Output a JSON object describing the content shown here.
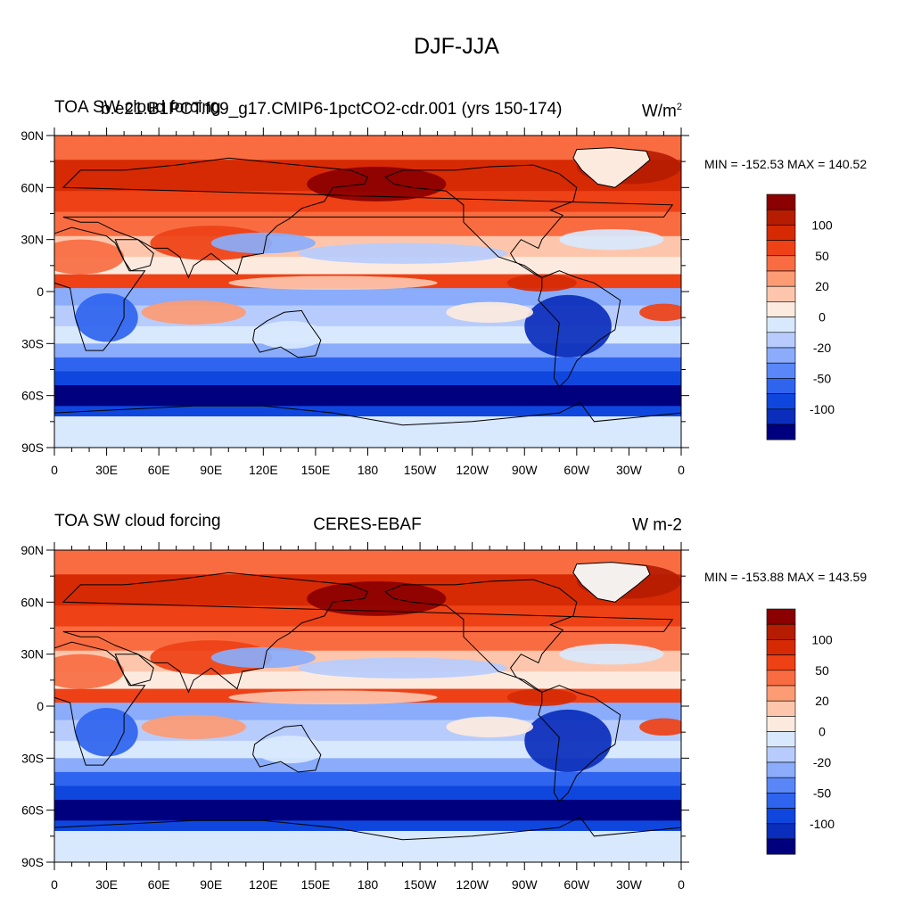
{
  "main_title": "DJF-JJA",
  "colors": [
    "#00007f",
    "#0a2dbb",
    "#0f47de",
    "#2f64ef",
    "#5987f8",
    "#8aacfb",
    "#b7ccfc",
    "#d8e8fd",
    "#fdeadf",
    "#fdc6ac",
    "#fc9b74",
    "#f96c41",
    "#ee4116",
    "#d62a05",
    "#b51c02",
    "#8b0000"
  ],
  "colorbar_labels": [
    "100",
    "50",
    "20",
    "0",
    "-20",
    "-50",
    "-100"
  ],
  "lat_labels": [
    "90N",
    "60N",
    "30N",
    "0",
    "30S",
    "60S",
    "90S"
  ],
  "lon_labels": [
    "0",
    "30E",
    "60E",
    "90E",
    "120E",
    "150E",
    "180",
    "150W",
    "120W",
    "90W",
    "60W",
    "30W",
    "0"
  ],
  "panels": [
    {
      "title_left": "TOA SW cloud forcing",
      "title_center": "b.e21.B1PCT.f09_g17.CMIP6-1pctCO2-cdr.001 (yrs 150-174)",
      "title_right": "W/m",
      "title_right_sup": "2",
      "minmax": "MIN = -152.53 MAX = 140.52"
    },
    {
      "title_left": "TOA SW cloud forcing",
      "title_center": "CERES-EBAF",
      "title_right": "W m-2",
      "title_right_sup": "",
      "minmax": "MIN = -153.88 MAX = 143.59"
    }
  ]
}
